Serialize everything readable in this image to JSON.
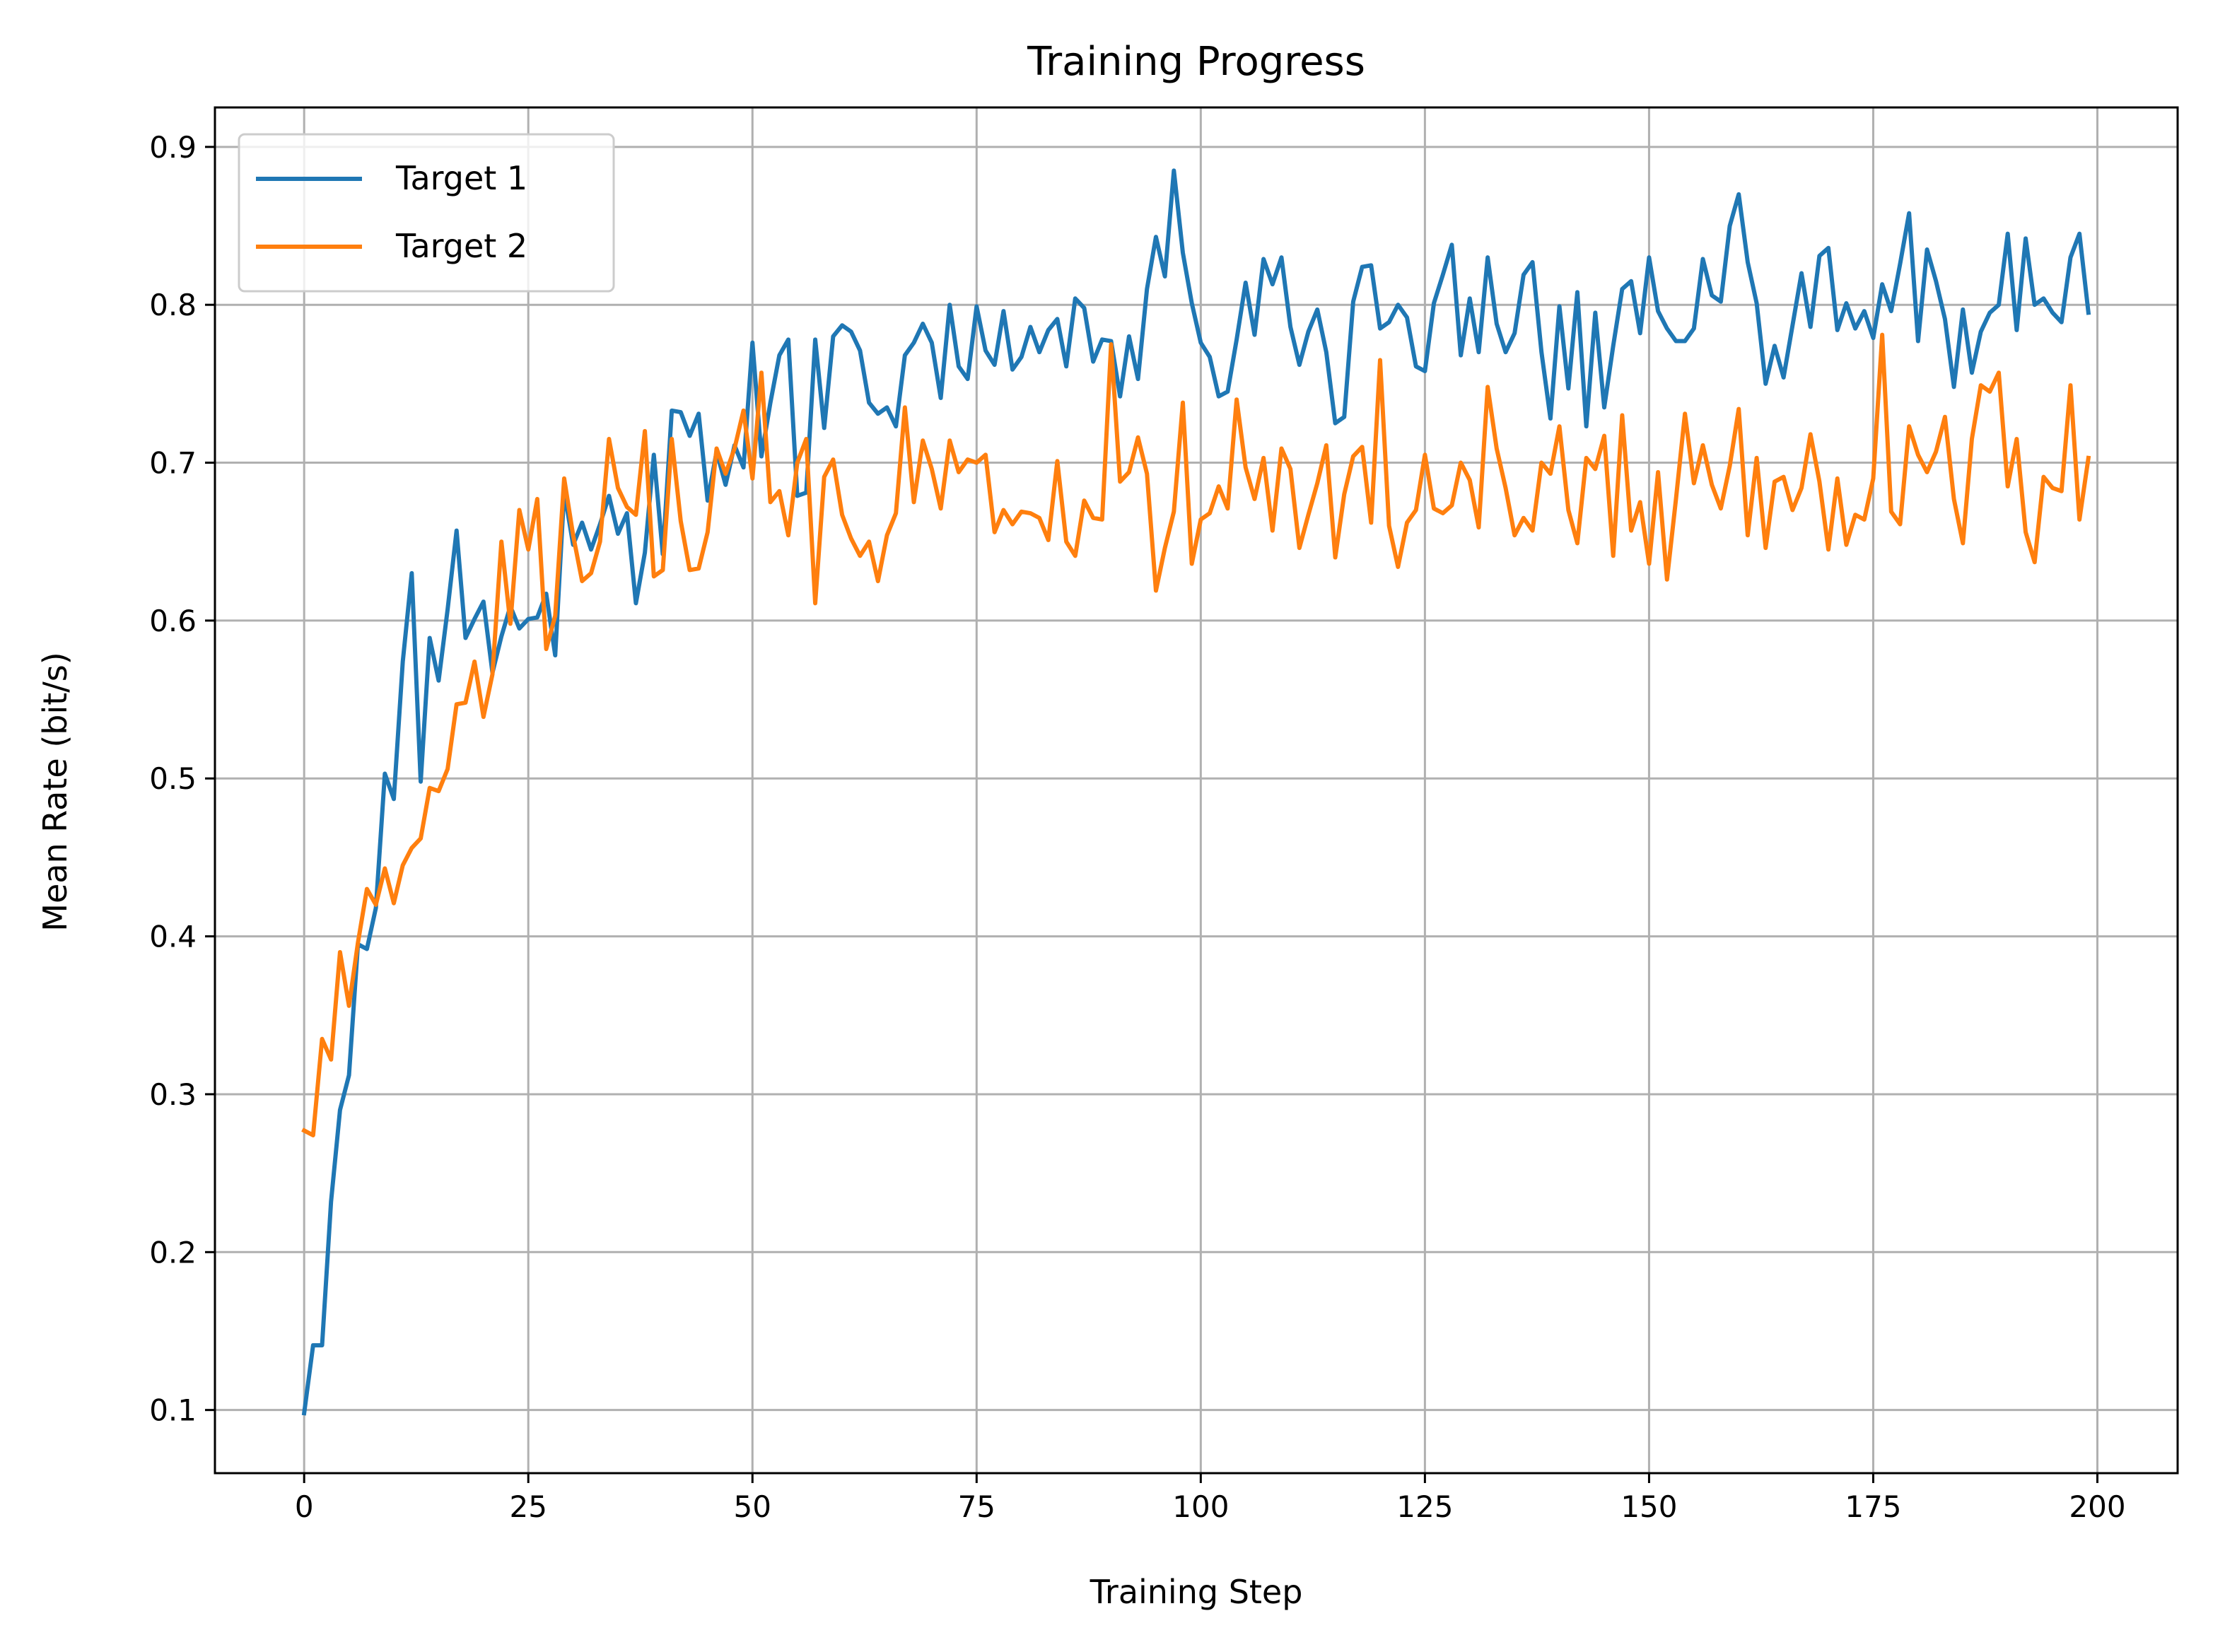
{
  "chart_data": {
    "type": "line",
    "title": "Training Progress",
    "xlabel": "Training Step",
    "ylabel": "Mean Rate (bit/s)",
    "xlim": [
      -9.95,
      208.95
    ],
    "ylim": [
      0.06,
      0.925
    ],
    "xticks": [
      0,
      25,
      50,
      75,
      100,
      125,
      150,
      175,
      200
    ],
    "yticks": [
      0.1,
      0.2,
      0.3,
      0.4,
      0.5,
      0.6,
      0.7,
      0.8,
      0.9
    ],
    "xtick_labels": [
      "0",
      "25",
      "50",
      "75",
      "100",
      "125",
      "150",
      "175",
      "200"
    ],
    "ytick_labels": [
      "0.1",
      "0.2",
      "0.3",
      "0.4",
      "0.5",
      "0.6",
      "0.7",
      "0.8",
      "0.9"
    ],
    "grid": true,
    "legend_position": "upper-left",
    "series": [
      {
        "name": "Target 1",
        "color": "#1f77b4",
        "x_start": 0,
        "x_step": 1,
        "values": [
          0.098,
          0.141,
          0.141,
          0.232,
          0.29,
          0.312,
          0.395,
          0.392,
          0.418,
          0.503,
          0.487,
          0.574,
          0.63,
          0.498,
          0.589,
          0.562,
          0.607,
          0.657,
          0.589,
          0.601,
          0.612,
          0.567,
          0.59,
          0.609,
          0.595,
          0.601,
          0.602,
          0.617,
          0.578,
          0.682,
          0.648,
          0.662,
          0.645,
          0.661,
          0.679,
          0.655,
          0.668,
          0.611,
          0.643,
          0.705,
          0.642,
          0.733,
          0.732,
          0.717,
          0.731,
          0.676,
          0.707,
          0.686,
          0.711,
          0.697,
          0.776,
          0.704,
          0.738,
          0.768,
          0.778,
          0.679,
          0.681,
          0.778,
          0.722,
          0.78,
          0.787,
          0.783,
          0.771,
          0.738,
          0.731,
          0.735,
          0.723,
          0.768,
          0.776,
          0.788,
          0.776,
          0.741,
          0.8,
          0.761,
          0.753,
          0.799,
          0.771,
          0.762,
          0.796,
          0.759,
          0.767,
          0.786,
          0.77,
          0.784,
          0.791,
          0.761,
          0.804,
          0.798,
          0.764,
          0.778,
          0.777,
          0.742,
          0.78,
          0.753,
          0.81,
          0.843,
          0.818,
          0.885,
          0.833,
          0.801,
          0.776,
          0.767,
          0.742,
          0.745,
          0.778,
          0.814,
          0.781,
          0.829,
          0.813,
          0.83,
          0.786,
          0.762,
          0.783,
          0.797,
          0.77,
          0.725,
          0.729,
          0.802,
          0.824,
          0.825,
          0.785,
          0.789,
          0.8,
          0.792,
          0.761,
          0.758,
          0.801,
          0.819,
          0.838,
          0.768,
          0.804,
          0.77,
          0.83,
          0.788,
          0.77,
          0.782,
          0.819,
          0.827,
          0.77,
          0.728,
          0.799,
          0.747,
          0.808,
          0.723,
          0.795,
          0.735,
          0.774,
          0.81,
          0.815,
          0.782,
          0.83,
          0.796,
          0.785,
          0.777,
          0.777,
          0.785,
          0.829,
          0.806,
          0.802,
          0.85,
          0.87,
          0.827,
          0.801,
          0.75,
          0.774,
          0.754,
          0.787,
          0.82,
          0.786,
          0.831,
          0.836,
          0.784,
          0.801,
          0.785,
          0.796,
          0.779,
          0.813,
          0.796,
          0.826,
          0.858,
          0.777,
          0.835,
          0.815,
          0.791,
          0.748,
          0.797,
          0.757,
          0.783,
          0.795,
          0.8,
          0.845,
          0.784,
          0.842,
          0.8,
          0.804,
          0.795,
          0.789,
          0.83,
          0.845,
          0.795
        ]
      },
      {
        "name": "Target 2",
        "color": "#ff7f0e",
        "x_start": 0,
        "x_step": 1,
        "values": [
          0.277,
          0.274,
          0.335,
          0.322,
          0.39,
          0.356,
          0.396,
          0.43,
          0.42,
          0.443,
          0.421,
          0.445,
          0.456,
          0.462,
          0.494,
          0.492,
          0.506,
          0.547,
          0.548,
          0.574,
          0.539,
          0.566,
          0.65,
          0.598,
          0.67,
          0.645,
          0.677,
          0.582,
          0.603,
          0.69,
          0.654,
          0.625,
          0.63,
          0.65,
          0.715,
          0.684,
          0.672,
          0.667,
          0.72,
          0.628,
          0.632,
          0.715,
          0.663,
          0.632,
          0.633,
          0.656,
          0.709,
          0.693,
          0.709,
          0.733,
          0.69,
          0.757,
          0.675,
          0.682,
          0.654,
          0.7,
          0.715,
          0.611,
          0.691,
          0.702,
          0.667,
          0.652,
          0.641,
          0.65,
          0.625,
          0.654,
          0.668,
          0.735,
          0.675,
          0.714,
          0.696,
          0.671,
          0.714,
          0.694,
          0.702,
          0.7,
          0.705,
          0.656,
          0.67,
          0.661,
          0.669,
          0.668,
          0.665,
          0.651,
          0.701,
          0.65,
          0.641,
          0.676,
          0.665,
          0.664,
          0.775,
          0.688,
          0.694,
          0.716,
          0.693,
          0.619,
          0.646,
          0.669,
          0.738,
          0.636,
          0.664,
          0.668,
          0.685,
          0.671,
          0.74,
          0.697,
          0.677,
          0.703,
          0.657,
          0.709,
          0.696,
          0.646,
          0.667,
          0.687,
          0.711,
          0.64,
          0.68,
          0.704,
          0.71,
          0.662,
          0.765,
          0.66,
          0.634,
          0.662,
          0.67,
          0.705,
          0.671,
          0.668,
          0.673,
          0.7,
          0.689,
          0.659,
          0.748,
          0.709,
          0.684,
          0.654,
          0.665,
          0.657,
          0.7,
          0.693,
          0.723,
          0.67,
          0.649,
          0.703,
          0.696,
          0.717,
          0.641,
          0.73,
          0.657,
          0.675,
          0.636,
          0.694,
          0.626,
          0.677,
          0.731,
          0.687,
          0.711,
          0.686,
          0.671,
          0.698,
          0.734,
          0.654,
          0.703,
          0.646,
          0.688,
          0.691,
          0.67,
          0.684,
          0.718,
          0.688,
          0.645,
          0.69,
          0.648,
          0.667,
          0.664,
          0.69,
          0.781,
          0.669,
          0.661,
          0.723,
          0.705,
          0.694,
          0.707,
          0.729,
          0.677,
          0.649,
          0.715,
          0.749,
          0.745,
          0.757,
          0.685,
          0.715,
          0.656,
          0.637,
          0.691,
          0.684,
          0.682,
          0.749,
          0.664,
          0.703
        ]
      }
    ]
  }
}
